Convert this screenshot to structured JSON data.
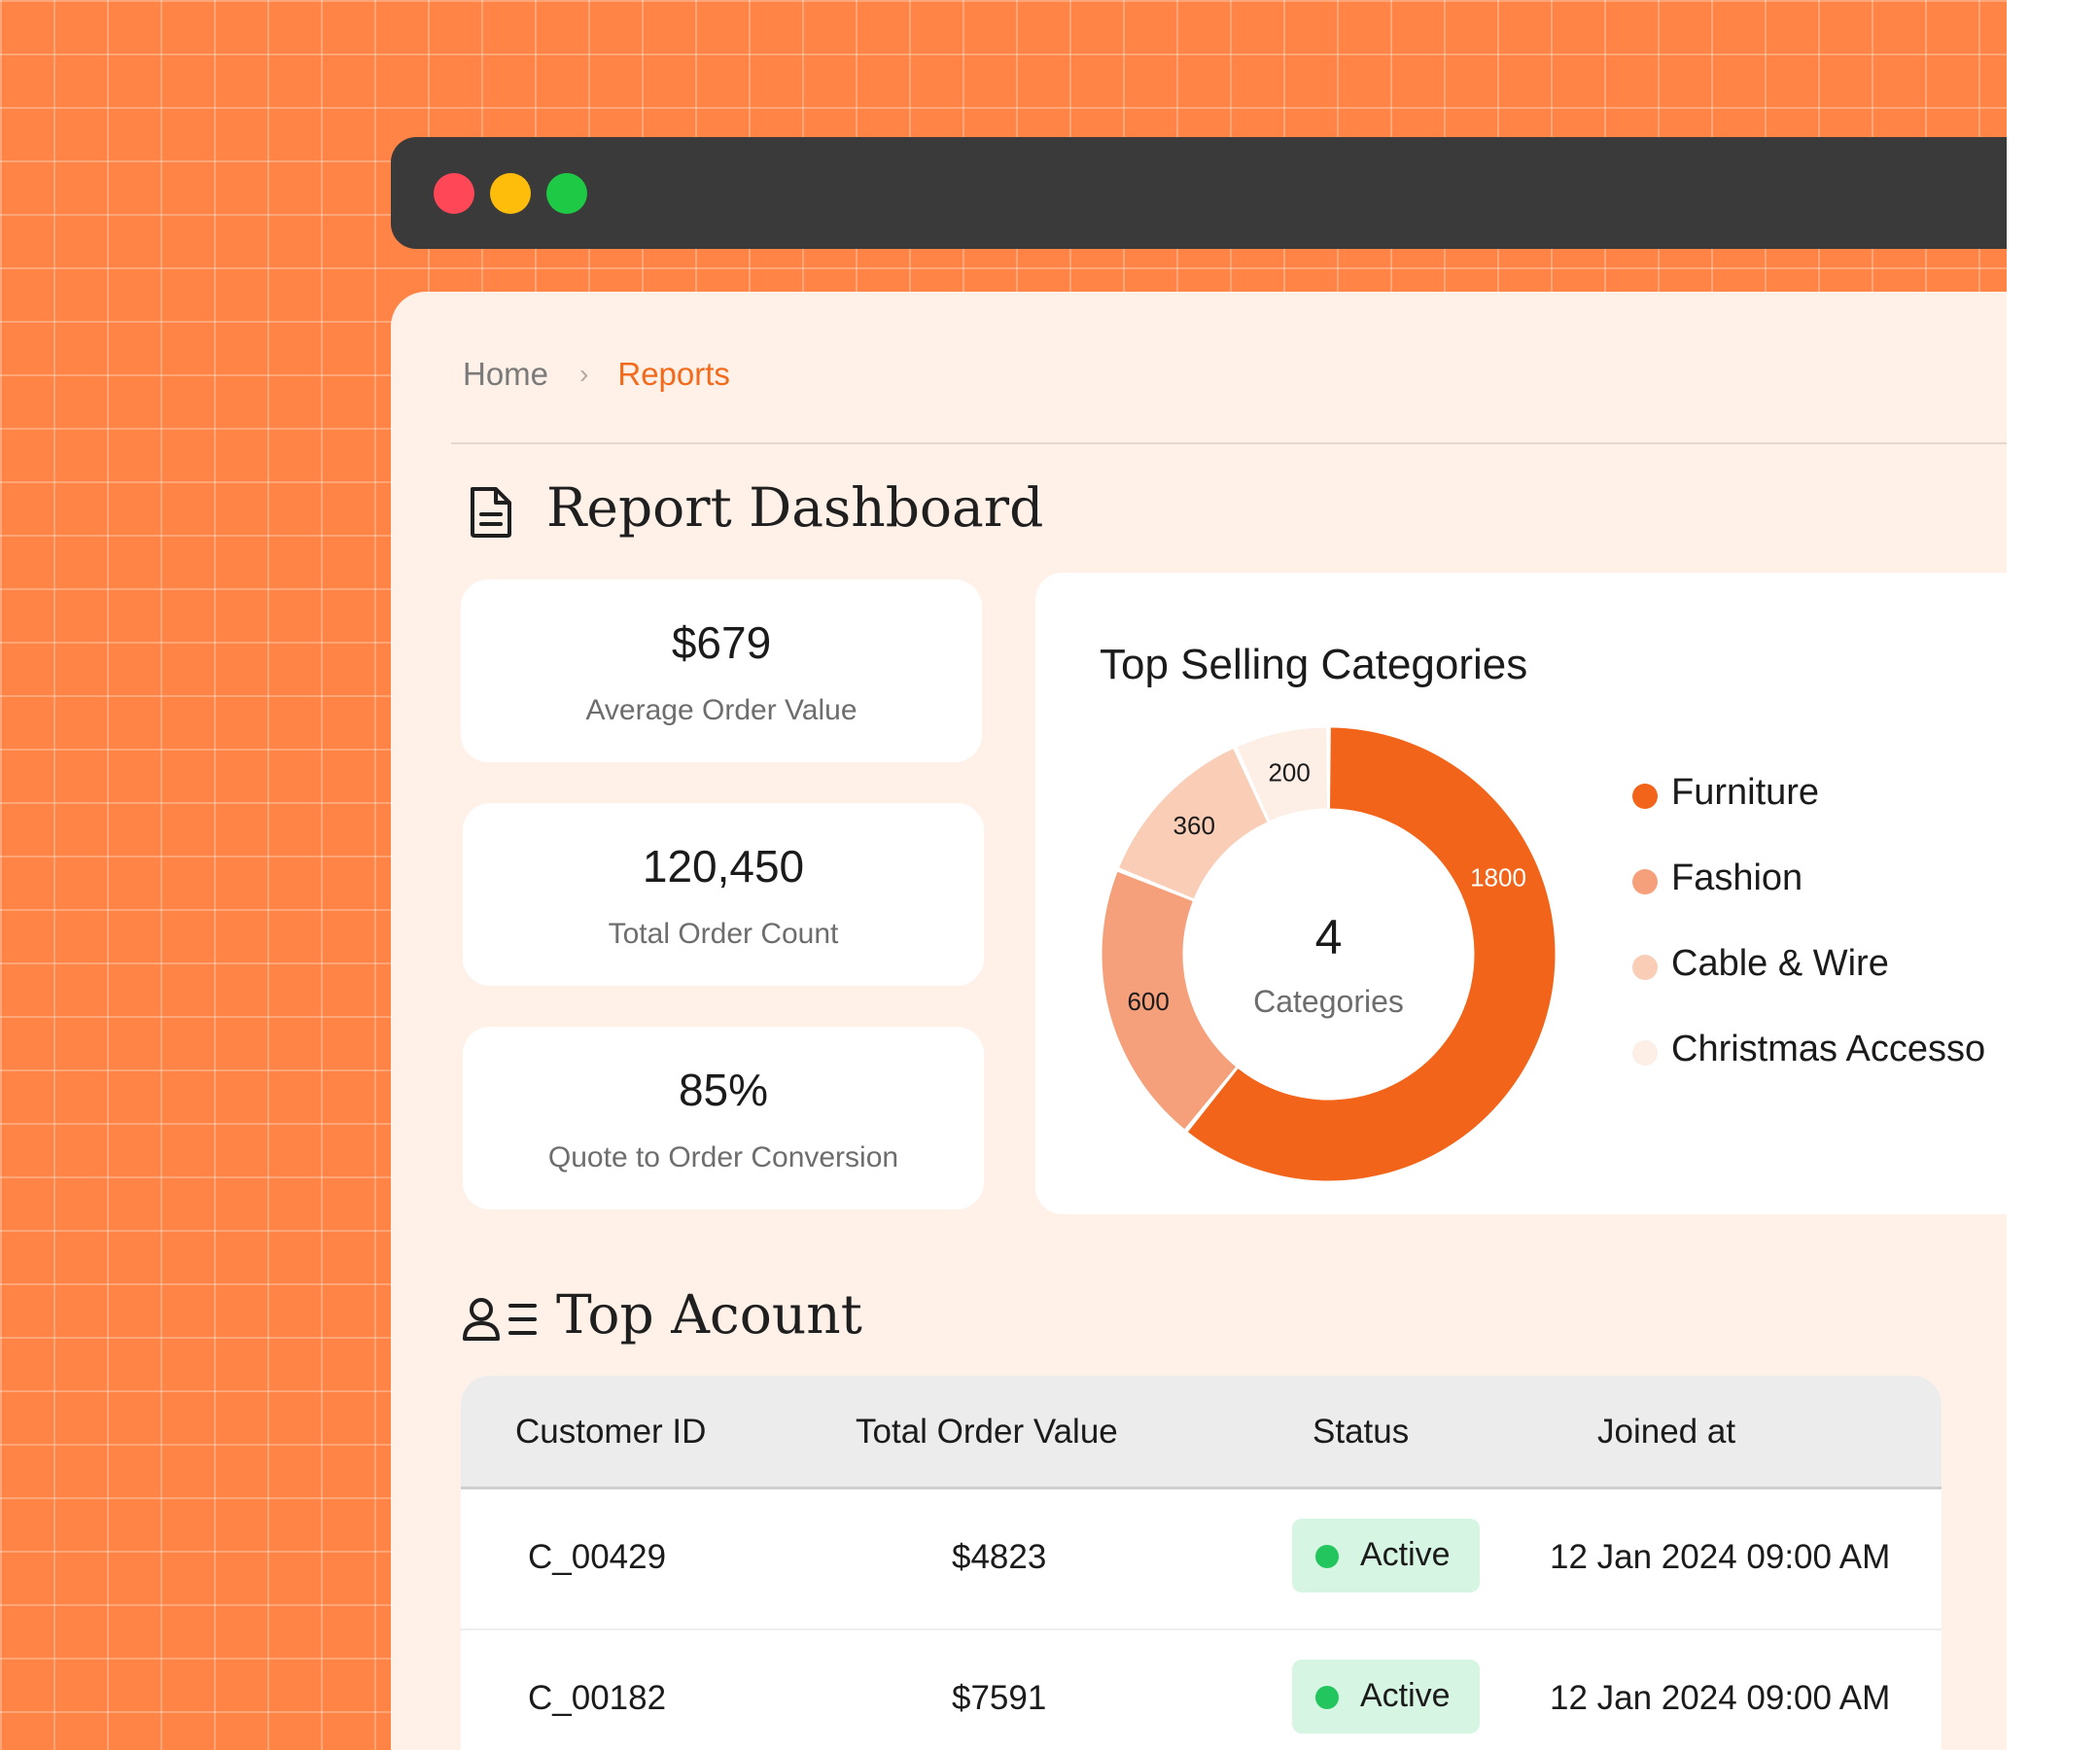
{
  "window": {
    "controls": [
      "close",
      "minimize",
      "maximize"
    ]
  },
  "breadcrumb": {
    "home": "Home",
    "separator_icon": "chevron-right-icon",
    "current": "Reports"
  },
  "report": {
    "title": "Report Dashboard",
    "icon": "document-icon"
  },
  "kpis": [
    {
      "value": "$679",
      "label": "Average Order Value"
    },
    {
      "value": "120,450",
      "label": "Total Order Count"
    },
    {
      "value": "85%",
      "label": "Quote to Order Conversion"
    }
  ],
  "chart_data": {
    "type": "pie",
    "style": "donut",
    "title": "Top Selling Categories",
    "center_value": "4",
    "center_label": "Categories",
    "series": [
      {
        "name": "Furniture",
        "value": 1800,
        "color": "#f26419"
      },
      {
        "name": "Fashion",
        "value": 600,
        "color": "#f5a07a"
      },
      {
        "name": "Cable & Wire",
        "value": 360,
        "color": "#f9cdb6"
      },
      {
        "name": "Christmas Accesso",
        "value": 200,
        "color": "#fdeee6"
      }
    ],
    "legend_position": "right"
  },
  "accounts": {
    "title": "Top Acount",
    "icon": "user-list-icon",
    "columns": [
      "Customer ID",
      "Total Order Value",
      "Status",
      "Joined at"
    ],
    "rows": [
      {
        "id": "C_00429",
        "value": "$4823",
        "status": "Active",
        "joined": "12 Jan 2024 09:00 AM"
      },
      {
        "id": "C_00182",
        "value": "$7591",
        "status": "Active",
        "joined": "12 Jan 2024 09:00 AM"
      }
    ],
    "status_color": "#22c55e"
  }
}
